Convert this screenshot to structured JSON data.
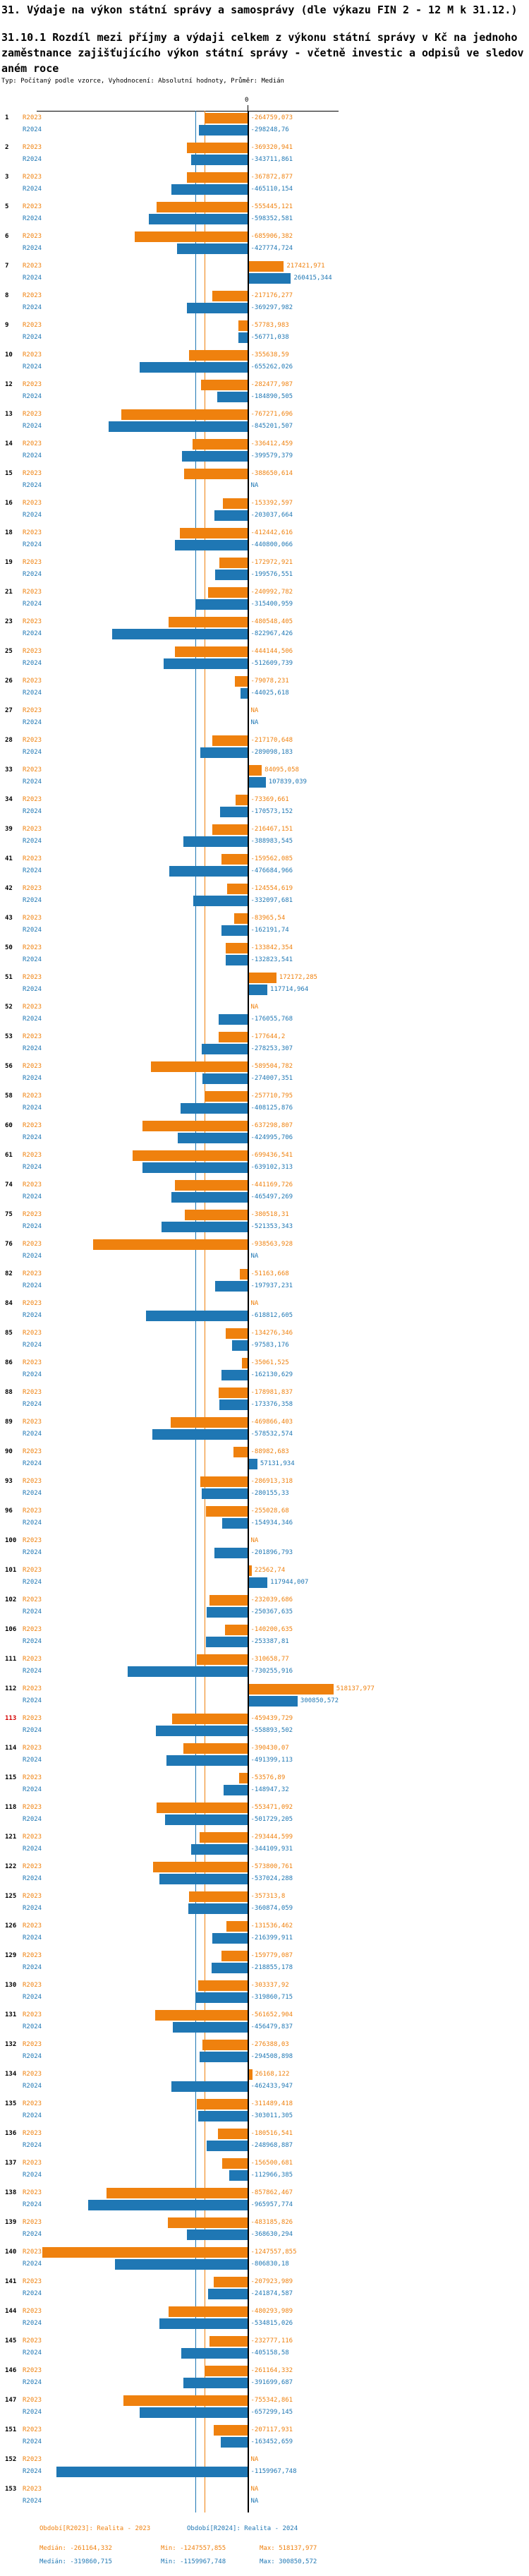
{
  "title": "31. Výdaje na výkon státní správy a samosprávy (dle výkazu FIN 2 - 12 M k 31.12.)",
  "subtitle": "31.10.1 Rozdíl mezi příjmy a výdaji celkem z výkonu státní správy v Kč na jednoho zaměstnance zajišťujícího výkon státní správy - včetně investic a odpisů ve sledovaném roce",
  "meta": "Typ: Počítaný podle vzorce, Vyhodnocení: Absolutní hodnoty, Průměr: Medián",
  "colors": {
    "r2023": "#ef810e",
    "r2024": "#1f77b4",
    "highlight_row_number": "#d40000",
    "axis": "#000000"
  },
  "footer": {
    "period_r2023": "Období[R2023]: Realita - 2023",
    "period_r2024": "Období[R2024]: Realita - 2024",
    "stats_r2023": {
      "median": "Medián: -261164,332",
      "min": "Min: -1247557,855",
      "max": "Max: 518137,977"
    },
    "stats_r2024": {
      "median": "Medián: -319860,715",
      "min": "Min: -1159967,748",
      "max": "Max: 300850,572"
    }
  },
  "chart_data": {
    "type": "bar",
    "orientation": "horizontal-diverging",
    "unit": "Kč",
    "series_names": [
      "R2023",
      "R2024"
    ],
    "na_text": "NA",
    "zero_tick_label": "0",
    "legend_position": "per-row-left",
    "grid": "median-reference-lines",
    "medians": {
      "R2023": -261164.332,
      "R2024": -319860.715
    },
    "min": {
      "R2023": -1247557.855,
      "R2024": -1159967.748
    },
    "max": {
      "R2023": 518137.977,
      "R2024": 300850.572
    },
    "rows": [
      {
        "id": "1",
        "r2023": -264759.073,
        "r2024": -298248.76
      },
      {
        "id": "2",
        "r2023": -369320.941,
        "r2024": -343711.861
      },
      {
        "id": "3",
        "r2023": -367872.877,
        "r2024": -465110.154
      },
      {
        "id": "5",
        "r2023": -555445.121,
        "r2024": -598352.581
      },
      {
        "id": "6",
        "r2023": -685906.382,
        "r2024": -427774.724
      },
      {
        "id": "7",
        "r2023": 217421.971,
        "r2024": 260415.344
      },
      {
        "id": "8",
        "r2023": -217176.277,
        "r2024": -369297.982
      },
      {
        "id": "9",
        "r2023": -57783.983,
        "r2024": -56771.038
      },
      {
        "id": "10",
        "r2023": -355638.59,
        "r2024": -655262.026
      },
      {
        "id": "12",
        "r2023": -282477.987,
        "r2024": -184890.505
      },
      {
        "id": "13",
        "r2023": -767271.696,
        "r2024": -845201.507
      },
      {
        "id": "14",
        "r2023": -336412.459,
        "r2024": -399579.379
      },
      {
        "id": "15",
        "r2023": -388650.614,
        "r2024": null
      },
      {
        "id": "16",
        "r2023": -153392.597,
        "r2024": -203037.664
      },
      {
        "id": "18",
        "r2023": -412442.616,
        "r2024": -440800.066
      },
      {
        "id": "19",
        "r2023": -172972.921,
        "r2024": -199576.551
      },
      {
        "id": "21",
        "r2023": -240992.782,
        "r2024": -315400.959
      },
      {
        "id": "23",
        "r2023": -480548.405,
        "r2024": -822967.426
      },
      {
        "id": "25",
        "r2023": -444144.506,
        "r2024": -512609.739
      },
      {
        "id": "26",
        "r2023": -79078.231,
        "r2024": -44025.618
      },
      {
        "id": "27",
        "r2023": null,
        "r2024": null
      },
      {
        "id": "28",
        "r2023": -217170.648,
        "r2024": -289098.183
      },
      {
        "id": "33",
        "r2023": 84095.058,
        "r2024": 107839.039
      },
      {
        "id": "34",
        "r2023": -73369.661,
        "r2024": -170573.152
      },
      {
        "id": "39",
        "r2023": -216467.151,
        "r2024": -388983.545
      },
      {
        "id": "41",
        "r2023": -159562.085,
        "r2024": -476684.966
      },
      {
        "id": "42",
        "r2023": -124554.619,
        "r2024": -332097.681
      },
      {
        "id": "43",
        "r2023": -83965.54,
        "r2024": -162191.74
      },
      {
        "id": "50",
        "r2023": -133842.354,
        "r2024": -132823.541
      },
      {
        "id": "51",
        "r2023": 172172.285,
        "r2024": 117714.964
      },
      {
        "id": "52",
        "r2023": null,
        "r2024": -176055.768
      },
      {
        "id": "53",
        "r2023": -177644.2,
        "r2024": -278253.307
      },
      {
        "id": "56",
        "r2023": -589504.782,
        "r2024": -274007.351
      },
      {
        "id": "58",
        "r2023": -257710.795,
        "r2024": -408125.876
      },
      {
        "id": "60",
        "r2023": -637298.807,
        "r2024": -424995.706
      },
      {
        "id": "61",
        "r2023": -699436.541,
        "r2024": -639102.313
      },
      {
        "id": "74",
        "r2023": -441169.726,
        "r2024": -465497.269
      },
      {
        "id": "75",
        "r2023": -380518.31,
        "r2024": -521353.343
      },
      {
        "id": "76",
        "r2023": -938563.928,
        "r2024": null
      },
      {
        "id": "82",
        "r2023": -51163.668,
        "r2024": -197937.231
      },
      {
        "id": "84",
        "r2023": null,
        "r2024": -618812.605
      },
      {
        "id": "85",
        "r2023": -134276.346,
        "r2024": -97583.176
      },
      {
        "id": "86",
        "r2023": -35061.525,
        "r2024": -162130.629
      },
      {
        "id": "88",
        "r2023": -178981.837,
        "r2024": -173376.358
      },
      {
        "id": "89",
        "r2023": -469866.403,
        "r2024": -578532.574
      },
      {
        "id": "90",
        "r2023": -88982.683,
        "r2024": 57131.934
      },
      {
        "id": "93",
        "r2023": -286913.318,
        "r2024": -280155.33
      },
      {
        "id": "96",
        "r2023": -255028.68,
        "r2024": -154934.346
      },
      {
        "id": "100",
        "r2023": null,
        "r2024": -201896.793
      },
      {
        "id": "101",
        "r2023": 22562.74,
        "r2024": 117944.007
      },
      {
        "id": "102",
        "r2023": -232039.686,
        "r2024": -250367.635
      },
      {
        "id": "106",
        "r2023": -140200.635,
        "r2024": -253387.81
      },
      {
        "id": "111",
        "r2023": -310658.77,
        "r2024": -730255.916
      },
      {
        "id": "112",
        "r2023": 518137.977,
        "r2024": 300850.572
      },
      {
        "id": "113",
        "highlight": true,
        "r2023": -459439.729,
        "r2024": -558893.502
      },
      {
        "id": "114",
        "r2023": -390430.07,
        "r2024": -491399.113
      },
      {
        "id": "115",
        "r2023": -53576.89,
        "r2024": -148947.32
      },
      {
        "id": "118",
        "r2023": -553471.092,
        "r2024": -501729.205
      },
      {
        "id": "121",
        "r2023": -293444.599,
        "r2024": -344109.931
      },
      {
        "id": "122",
        "r2023": -573800.761,
        "r2024": -537024.288
      },
      {
        "id": "125",
        "r2023": -357313.8,
        "r2024": -360874.059
      },
      {
        "id": "126",
        "r2023": -131536.462,
        "r2024": -216399.911
      },
      {
        "id": "129",
        "r2023": -159779.087,
        "r2024": -218855.178
      },
      {
        "id": "130",
        "r2023": -303337.92,
        "r2024": -319860.715
      },
      {
        "id": "131",
        "r2023": -561652.904,
        "r2024": -456479.837
      },
      {
        "id": "132",
        "r2023": -276388.03,
        "r2024": -294508.898
      },
      {
        "id": "134",
        "r2023": 26168.122,
        "r2024": -462433.947
      },
      {
        "id": "135",
        "r2023": -311489.418,
        "r2024": -303011.305
      },
      {
        "id": "136",
        "r2023": -180516.541,
        "r2024": -248968.887
      },
      {
        "id": "137",
        "r2023": -156500.681,
        "r2024": -112966.385
      },
      {
        "id": "138",
        "r2023": -857862.467,
        "r2024": -965957.774
      },
      {
        "id": "139",
        "r2023": -483185.826,
        "r2024": -368630.294
      },
      {
        "id": "140",
        "r2023": -1247557.855,
        "r2024": -806830.18
      },
      {
        "id": "141",
        "r2023": -207923.989,
        "r2024": -241874.587
      },
      {
        "id": "144",
        "r2023": -480293.989,
        "r2024": -534815.026
      },
      {
        "id": "145",
        "r2023": -232777.116,
        "r2024": -405158.58
      },
      {
        "id": "146",
        "r2023": -261164.332,
        "r2024": -391699.687
      },
      {
        "id": "147",
        "r2023": -755342.861,
        "r2024": -657299.145
      },
      {
        "id": "151",
        "r2023": -207117.931,
        "r2024": -163452.659
      },
      {
        "id": "152",
        "r2023": null,
        "r2024": -1159967.748
      },
      {
        "id": "153",
        "r2023": null,
        "r2024": null
      }
    ]
  }
}
